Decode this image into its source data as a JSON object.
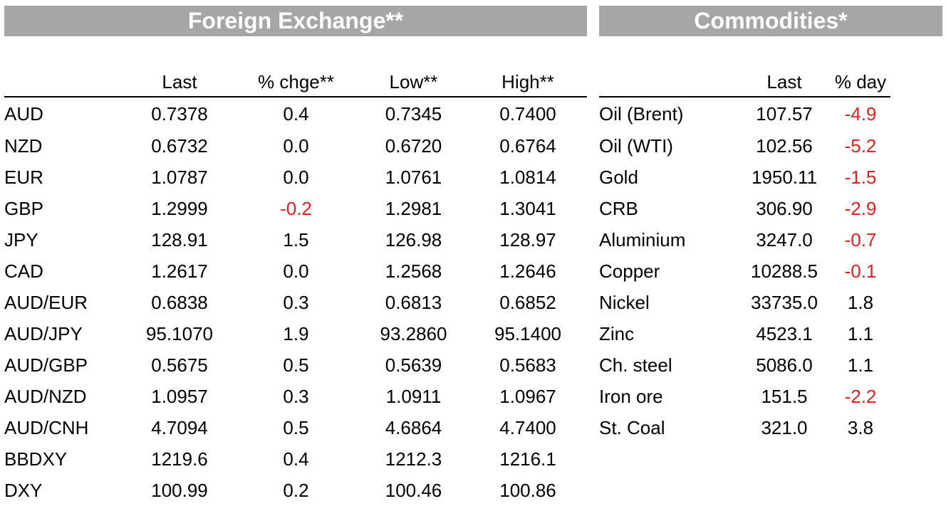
{
  "fx": {
    "title": "Foreign Exchange**",
    "headers": [
      "",
      "Last",
      "% chge**",
      "Low**",
      "High**"
    ],
    "rows": [
      {
        "name": "AUD",
        "last": "0.7378",
        "chg": "0.4",
        "low": "0.7345",
        "high": "0.7400"
      },
      {
        "name": "NZD",
        "last": "0.6732",
        "chg": "0.0",
        "low": "0.6720",
        "high": "0.6764"
      },
      {
        "name": "EUR",
        "last": "1.0787",
        "chg": "0.0",
        "low": "1.0761",
        "high": "1.0814"
      },
      {
        "name": "GBP",
        "last": "1.2999",
        "chg": "-0.2",
        "low": "1.2981",
        "high": "1.3041"
      },
      {
        "name": "JPY",
        "last": "128.91",
        "chg": "1.5",
        "low": "126.98",
        "high": "128.97"
      },
      {
        "name": "CAD",
        "last": "1.2617",
        "chg": "0.0",
        "low": "1.2568",
        "high": "1.2646"
      },
      {
        "name": "AUD/EUR",
        "last": "0.6838",
        "chg": "0.3",
        "low": "0.6813",
        "high": "0.6852"
      },
      {
        "name": "AUD/JPY",
        "last": "95.1070",
        "chg": "1.9",
        "low": "93.2860",
        "high": "95.1400"
      },
      {
        "name": "AUD/GBP",
        "last": "0.5675",
        "chg": "0.5",
        "low": "0.5639",
        "high": "0.5683"
      },
      {
        "name": "AUD/NZD",
        "last": "1.0957",
        "chg": "0.3",
        "low": "1.0911",
        "high": "1.0967"
      },
      {
        "name": "AUD/CNH",
        "last": "4.7094",
        "chg": "0.5",
        "low": "4.6864",
        "high": "4.7400"
      },
      {
        "name": "BBDXY",
        "last": "1219.6",
        "chg": "0.4",
        "low": "1212.3",
        "high": "1216.1"
      },
      {
        "name": "DXY",
        "last": "100.99",
        "chg": "0.2",
        "low": "100.46",
        "high": "100.86"
      }
    ]
  },
  "commodities": {
    "title": "Commodities*",
    "headers": [
      "",
      "Last",
      "% day"
    ],
    "rows": [
      {
        "name": "Oil (Brent)",
        "last": "107.57",
        "day": "-4.9"
      },
      {
        "name": "Oil (WTI)",
        "last": "102.56",
        "day": "-5.2"
      },
      {
        "name": "Gold",
        "last": "1950.11",
        "day": "-1.5"
      },
      {
        "name": "CRB",
        "last": "306.90",
        "day": "-2.9"
      },
      {
        "name": "Aluminium",
        "last": "3247.0",
        "day": "-0.7"
      },
      {
        "name": "Copper",
        "last": "10288.5",
        "day": "-0.1"
      },
      {
        "name": "Nickel",
        "last": "33735.0",
        "day": "1.8"
      },
      {
        "name": "Zinc",
        "last": "4523.1",
        "day": "1.1"
      },
      {
        "name": "Ch. steel",
        "last": "5086.0",
        "day": "1.1"
      },
      {
        "name": "Iron ore",
        "last": "151.5",
        "day": "-2.2"
      },
      {
        "name": "St. Coal",
        "last": "321.0",
        "day": "3.8"
      }
    ]
  },
  "colors": {
    "banner": "#a6a6a6",
    "negative": "#e02020",
    "text": "#000000"
  }
}
